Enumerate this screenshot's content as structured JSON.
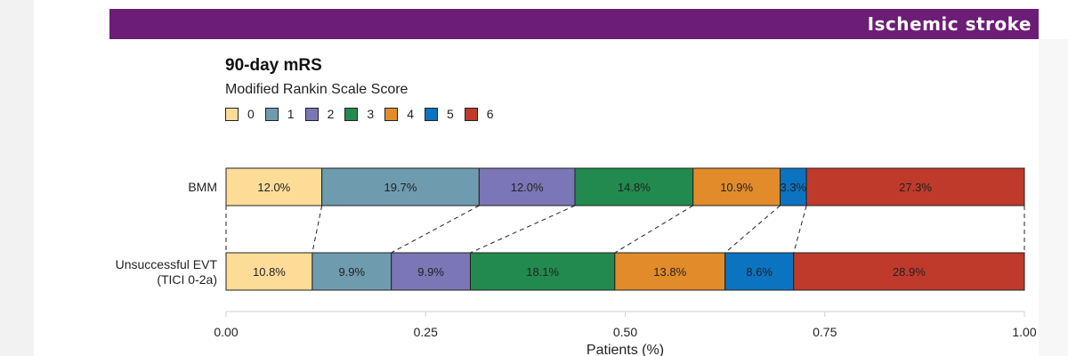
{
  "banner": {
    "title": "Ischemic stroke"
  },
  "colors": {
    "banner": "#6c1d76",
    "scores": [
      "#fddc98",
      "#6f9bae",
      "#7b76b5",
      "#228a4f",
      "#e28b2a",
      "#0c73c0",
      "#bf3a2b"
    ]
  },
  "chart_data": {
    "type": "bar",
    "orientation": "horizontal",
    "stacked": true,
    "title": "90-day mRS",
    "legend_title": "Modified Rankin Scale Score",
    "legend_position": "top-left",
    "legend": [
      "0",
      "1",
      "2",
      "3",
      "4",
      "5",
      "6"
    ],
    "categories": [
      "BMM",
      "Unsuccessful EVT (TICI 0-2a)"
    ],
    "category_labels": [
      [
        "BMM"
      ],
      [
        "Unsuccessful EVT",
        "(TICI 0-2a)"
      ]
    ],
    "rows": [
      {
        "values": [
          0.12,
          0.197,
          0.12,
          0.148,
          0.109,
          0.033,
          0.273
        ],
        "labels": [
          "12.0%",
          "19.7%",
          "12.0%",
          "14.8%",
          "10.9%",
          "3.3%",
          "27.3%"
        ]
      },
      {
        "values": [
          0.108,
          0.099,
          0.099,
          0.181,
          0.138,
          0.086,
          0.289
        ],
        "labels": [
          "10.8%",
          "9.9%",
          "9.9%",
          "18.1%",
          "13.8%",
          "8.6%",
          "28.9%"
        ]
      }
    ],
    "x_ticks": [
      0,
      0.25,
      0.5,
      0.75,
      1.0
    ],
    "x_tick_labels": [
      "0.00",
      "0.25",
      "0.50",
      "0.75",
      "1.00"
    ],
    "xlim": [
      0,
      1
    ],
    "xlabel": "Patients (%)",
    "grid": false
  }
}
